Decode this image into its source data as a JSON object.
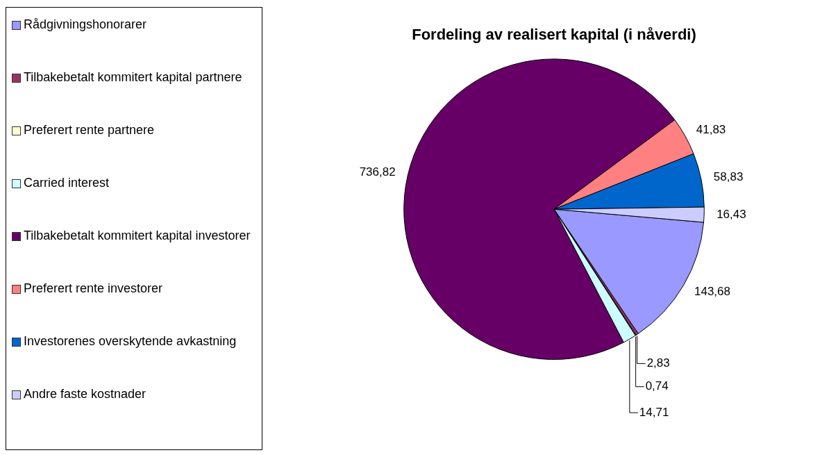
{
  "chart_data": {
    "type": "pie",
    "title": "Fordeling av realisert kapital (i nåverdi)",
    "categories": [
      "Rådgivningshonorarer",
      "Tilbakebetalt kommitert kapital partnere",
      "Preferert rente partnere",
      "Carried interest",
      "Tilbakebetalt kommitert kapital investorer",
      "Preferert rente investorer",
      "Investorenes overskytende avkastning",
      "Andre faste kostnader"
    ],
    "values": [
      143.68,
      2.83,
      0.74,
      14.71,
      736.82,
      41.83,
      58.83,
      16.43
    ],
    "value_labels": [
      "143,68",
      "2,83",
      "0,74",
      "14,71",
      "736,82",
      "41,83",
      "58,83",
      "16,43"
    ],
    "colors": [
      "#9999ff",
      "#993366",
      "#ffffcc",
      "#ccffff",
      "#660066",
      "#ff8080",
      "#0066cc",
      "#ccccff"
    ],
    "legend": "left"
  }
}
